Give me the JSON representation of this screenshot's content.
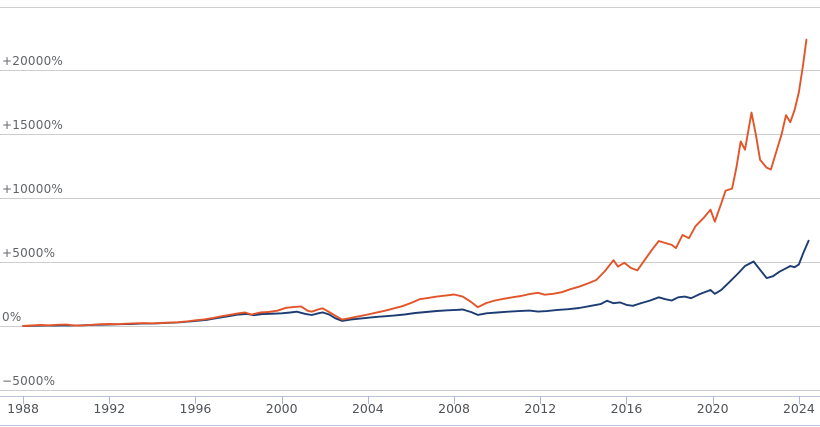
{
  "chart_data": {
    "type": "line",
    "title": "",
    "legend": "none",
    "grid": true,
    "colors": {
      "gridline": "#cdcdcd",
      "axis_line": "#b9c3da",
      "tick_mark": "#a9b5d2",
      "y_label_text": "#626468",
      "x_label_text": "#4f5257",
      "background": "#ffffff"
    },
    "x_axis": {
      "range": [
        1986.93,
        2024.98
      ],
      "ticks": [
        {
          "value": 1988,
          "label": "1988"
        },
        {
          "value": 1992,
          "label": "1992"
        },
        {
          "value": 1996,
          "label": "1996"
        },
        {
          "value": 2000,
          "label": "2000"
        },
        {
          "value": 2004,
          "label": "2004"
        },
        {
          "value": 2008,
          "label": "2008"
        },
        {
          "value": 2012,
          "label": "2012"
        },
        {
          "value": 2016,
          "label": "2016"
        },
        {
          "value": 2020,
          "label": "2020"
        },
        {
          "value": 2024,
          "label": "2024"
        }
      ]
    },
    "y_axis": {
      "range": [
        -7900,
        25510
      ],
      "unit": "%",
      "ticks": [
        {
          "value": 25000,
          "label": ""
        },
        {
          "value": 20000,
          "label": "+20000%"
        },
        {
          "value": 15000,
          "label": "+15000%"
        },
        {
          "value": 10000,
          "label": "+10000%"
        },
        {
          "value": 5000,
          "label": "+5000%"
        },
        {
          "value": 0,
          "label": "0%"
        },
        {
          "value": -5000,
          "label": "−5000%"
        }
      ]
    },
    "series": [
      {
        "name": "series-blue",
        "color": "#1c3c73",
        "stroke_width": 1.9,
        "points": [
          [
            1988.0,
            0
          ],
          [
            1988.5,
            20
          ],
          [
            1989.0,
            40
          ],
          [
            1989.5,
            30
          ],
          [
            1990.0,
            60
          ],
          [
            1990.5,
            40
          ],
          [
            1991.0,
            70
          ],
          [
            1991.5,
            100
          ],
          [
            1992.0,
            120
          ],
          [
            1992.5,
            140
          ],
          [
            1993.0,
            160
          ],
          [
            1993.5,
            190
          ],
          [
            1994.0,
            200
          ],
          [
            1994.5,
            230
          ],
          [
            1995.0,
            260
          ],
          [
            1995.5,
            320
          ],
          [
            1996.0,
            400
          ],
          [
            1996.5,
            480
          ],
          [
            1997.0,
            620
          ],
          [
            1997.5,
            760
          ],
          [
            1998.0,
            900
          ],
          [
            1998.4,
            950
          ],
          [
            1998.7,
            850
          ],
          [
            1999.1,
            940
          ],
          [
            1999.5,
            960
          ],
          [
            2000.0,
            1000
          ],
          [
            2000.4,
            1060
          ],
          [
            2000.7,
            1120
          ],
          [
            2001.1,
            950
          ],
          [
            2001.4,
            860
          ],
          [
            2001.7,
            1000
          ],
          [
            2001.9,
            1070
          ],
          [
            2002.2,
            900
          ],
          [
            2002.5,
            600
          ],
          [
            2002.8,
            400
          ],
          [
            2003.2,
            500
          ],
          [
            2003.7,
            600
          ],
          [
            2004.2,
            680
          ],
          [
            2004.7,
            750
          ],
          [
            2005.2,
            820
          ],
          [
            2005.7,
            900
          ],
          [
            2006.2,
            1020
          ],
          [
            2006.7,
            1100
          ],
          [
            2007.2,
            1180
          ],
          [
            2007.7,
            1230
          ],
          [
            2008.1,
            1260
          ],
          [
            2008.4,
            1290
          ],
          [
            2008.8,
            1090
          ],
          [
            2009.1,
            870
          ],
          [
            2009.5,
            1000
          ],
          [
            2010.0,
            1060
          ],
          [
            2010.5,
            1120
          ],
          [
            2011.0,
            1170
          ],
          [
            2011.5,
            1210
          ],
          [
            2011.9,
            1130
          ],
          [
            2012.3,
            1170
          ],
          [
            2012.8,
            1260
          ],
          [
            2013.3,
            1320
          ],
          [
            2013.8,
            1410
          ],
          [
            2014.3,
            1560
          ],
          [
            2014.8,
            1720
          ],
          [
            2015.1,
            1980
          ],
          [
            2015.4,
            1790
          ],
          [
            2015.7,
            1850
          ],
          [
            2016.0,
            1650
          ],
          [
            2016.3,
            1580
          ],
          [
            2016.7,
            1800
          ],
          [
            2017.1,
            2000
          ],
          [
            2017.5,
            2250
          ],
          [
            2017.8,
            2100
          ],
          [
            2018.1,
            2000
          ],
          [
            2018.4,
            2250
          ],
          [
            2018.7,
            2300
          ],
          [
            2019.0,
            2180
          ],
          [
            2019.4,
            2500
          ],
          [
            2019.9,
            2820
          ],
          [
            2020.1,
            2520
          ],
          [
            2020.4,
            2830
          ],
          [
            2020.8,
            3480
          ],
          [
            2021.2,
            4150
          ],
          [
            2021.5,
            4700
          ],
          [
            2021.9,
            5050
          ],
          [
            2022.2,
            4400
          ],
          [
            2022.5,
            3750
          ],
          [
            2022.8,
            3900
          ],
          [
            2023.1,
            4250
          ],
          [
            2023.4,
            4520
          ],
          [
            2023.6,
            4700
          ],
          [
            2023.8,
            4600
          ],
          [
            2024.0,
            4820
          ],
          [
            2024.2,
            5700
          ],
          [
            2024.45,
            6680
          ]
        ]
      },
      {
        "name": "series-orange",
        "color": "#e2552a",
        "stroke_width": 1.9,
        "points": [
          [
            1988.0,
            0
          ],
          [
            1988.4,
            40
          ],
          [
            1988.8,
            80
          ],
          [
            1989.2,
            60
          ],
          [
            1989.6,
            100
          ],
          [
            1990.0,
            110
          ],
          [
            1990.4,
            30
          ],
          [
            1990.8,
            60
          ],
          [
            1991.2,
            100
          ],
          [
            1991.6,
            140
          ],
          [
            1992.0,
            160
          ],
          [
            1992.4,
            140
          ],
          [
            1992.8,
            180
          ],
          [
            1993.2,
            210
          ],
          [
            1993.6,
            230
          ],
          [
            1994.0,
            210
          ],
          [
            1994.4,
            240
          ],
          [
            1994.8,
            270
          ],
          [
            1995.2,
            300
          ],
          [
            1995.6,
            360
          ],
          [
            1996.0,
            450
          ],
          [
            1996.4,
            520
          ],
          [
            1996.8,
            620
          ],
          [
            1997.2,
            760
          ],
          [
            1997.6,
            880
          ],
          [
            1998.0,
            1000
          ],
          [
            1998.3,
            1060
          ],
          [
            1998.6,
            900
          ],
          [
            1999.0,
            1060
          ],
          [
            1999.4,
            1100
          ],
          [
            1999.8,
            1200
          ],
          [
            2000.2,
            1430
          ],
          [
            2000.6,
            1500
          ],
          [
            2000.9,
            1540
          ],
          [
            2001.2,
            1200
          ],
          [
            2001.4,
            1120
          ],
          [
            2001.7,
            1300
          ],
          [
            2001.9,
            1390
          ],
          [
            2002.2,
            1100
          ],
          [
            2002.5,
            800
          ],
          [
            2002.8,
            500
          ],
          [
            2003.1,
            600
          ],
          [
            2003.4,
            700
          ],
          [
            2003.7,
            800
          ],
          [
            2004.0,
            900
          ],
          [
            2004.4,
            1050
          ],
          [
            2004.8,
            1200
          ],
          [
            2005.2,
            1380
          ],
          [
            2005.6,
            1550
          ],
          [
            2006.0,
            1800
          ],
          [
            2006.4,
            2100
          ],
          [
            2006.8,
            2200
          ],
          [
            2007.2,
            2300
          ],
          [
            2007.6,
            2380
          ],
          [
            2008.0,
            2470
          ],
          [
            2008.4,
            2300
          ],
          [
            2008.8,
            1870
          ],
          [
            2009.1,
            1470
          ],
          [
            2009.5,
            1800
          ],
          [
            2009.9,
            2000
          ],
          [
            2010.3,
            2130
          ],
          [
            2010.7,
            2250
          ],
          [
            2011.1,
            2350
          ],
          [
            2011.5,
            2500
          ],
          [
            2011.9,
            2600
          ],
          [
            2012.2,
            2450
          ],
          [
            2012.6,
            2520
          ],
          [
            2013.0,
            2650
          ],
          [
            2013.4,
            2880
          ],
          [
            2013.8,
            3080
          ],
          [
            2014.2,
            3330
          ],
          [
            2014.6,
            3600
          ],
          [
            2015.0,
            4300
          ],
          [
            2015.4,
            5150
          ],
          [
            2015.6,
            4650
          ],
          [
            2015.9,
            4950
          ],
          [
            2016.2,
            4550
          ],
          [
            2016.5,
            4350
          ],
          [
            2016.9,
            5300
          ],
          [
            2017.2,
            6000
          ],
          [
            2017.5,
            6650
          ],
          [
            2017.8,
            6500
          ],
          [
            2018.1,
            6350
          ],
          [
            2018.3,
            6100
          ],
          [
            2018.6,
            7120
          ],
          [
            2018.9,
            6870
          ],
          [
            2019.2,
            7800
          ],
          [
            2019.6,
            8500
          ],
          [
            2019.9,
            9100
          ],
          [
            2020.1,
            8160
          ],
          [
            2020.4,
            9600
          ],
          [
            2020.6,
            10600
          ],
          [
            2020.9,
            10750
          ],
          [
            2021.1,
            12400
          ],
          [
            2021.3,
            14450
          ],
          [
            2021.5,
            13800
          ],
          [
            2021.8,
            16700
          ],
          [
            2022.0,
            15000
          ],
          [
            2022.2,
            13000
          ],
          [
            2022.5,
            12400
          ],
          [
            2022.7,
            12250
          ],
          [
            2023.0,
            13900
          ],
          [
            2023.2,
            15000
          ],
          [
            2023.4,
            16500
          ],
          [
            2023.6,
            15950
          ],
          [
            2023.8,
            16900
          ],
          [
            2024.0,
            18300
          ],
          [
            2024.2,
            20500
          ],
          [
            2024.35,
            22400
          ]
        ]
      }
    ]
  }
}
